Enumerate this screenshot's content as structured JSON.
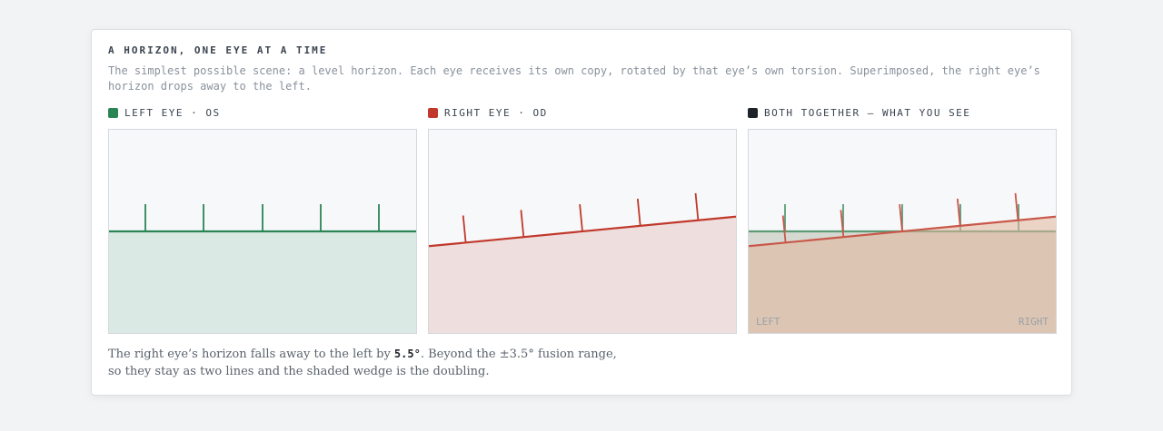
{
  "header": {
    "title": "A HORIZON, ONE EYE AT A TIME",
    "description": "The simplest possible scene: a level horizon. Each eye receives its own copy, rotated by that eye’s own torsion. Superimposed, the right eye’s horizon drops away to the left."
  },
  "panels": [
    {
      "label": "LEFT EYE · OS"
    },
    {
      "label": "RIGHT EYE · OD"
    },
    {
      "label": "BOTH TOGETHER — WHAT YOU SEE",
      "left": "LEFT",
      "right": "RIGHT"
    }
  ],
  "caption": {
    "before": "The right eye’s horizon falls away to the left by ",
    "torsion": {
      "value": 5.5,
      "label": "5.5°"
    },
    "after": ". Beyond the ±3.5° fusion range,",
    "line_2": "so they stay as two lines and the shaded wedge is the doubling."
  }
}
